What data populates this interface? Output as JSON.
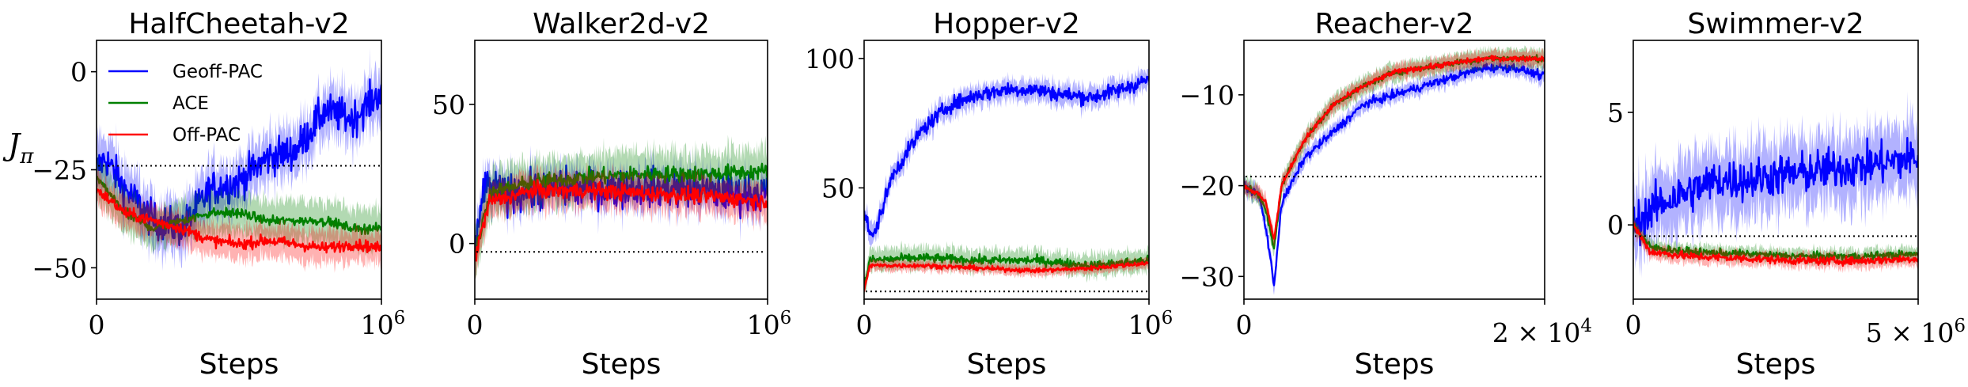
{
  "figure": {
    "ylabel": "J",
    "ylabel_sub": "π",
    "legend": [
      {
        "label": "Geoff-PAC",
        "color": "#0000ff"
      },
      {
        "label": "ACE",
        "color": "#008000"
      },
      {
        "label": "Off-PAC",
        "color": "#ff0000"
      }
    ]
  },
  "chart_data": [
    {
      "type": "line",
      "title": "HalfCheetah-v2",
      "xlabel": "Steps",
      "xlim": [
        0,
        1000000
      ],
      "ylim": [
        -58,
        8
      ],
      "yticks": [
        {
          "v": 0,
          "label": "0"
        },
        {
          "v": -25,
          "label": "−25"
        },
        {
          "v": -50,
          "label": "−50"
        }
      ],
      "xticks": [
        {
          "v": 0,
          "label": "0"
        },
        {
          "v": 1000000,
          "base": "10",
          "exp": "6"
        }
      ],
      "baseline": -24,
      "series": [
        {
          "name": "Geoff-PAC",
          "color": "#0000ff",
          "points": [
            [
              0,
              -25
            ],
            [
              30000,
              -22
            ],
            [
              100000,
              -30
            ],
            [
              200000,
              -38
            ],
            [
              300000,
              -40
            ],
            [
              400000,
              -30
            ],
            [
              500000,
              -28
            ],
            [
              600000,
              -22
            ],
            [
              700000,
              -20
            ],
            [
              800000,
              -10
            ],
            [
              900000,
              -12
            ],
            [
              1000000,
              -5
            ]
          ],
          "noise": 8,
          "band": 6
        },
        {
          "name": "ACE",
          "color": "#008000",
          "points": [
            [
              0,
              -27
            ],
            [
              100000,
              -36
            ],
            [
              200000,
              -40
            ],
            [
              300000,
              -38
            ],
            [
              400000,
              -36
            ],
            [
              500000,
              -36
            ],
            [
              600000,
              -38
            ],
            [
              700000,
              -38
            ],
            [
              800000,
              -38
            ],
            [
              900000,
              -40
            ],
            [
              1000000,
              -40
            ]
          ],
          "noise": 2,
          "band": 5
        },
        {
          "name": "Off-PAC",
          "color": "#ff0000",
          "points": [
            [
              0,
              -30
            ],
            [
              100000,
              -36
            ],
            [
              200000,
              -38
            ],
            [
              300000,
              -40
            ],
            [
              400000,
              -43
            ],
            [
              500000,
              -44
            ],
            [
              600000,
              -43
            ],
            [
              700000,
              -44
            ],
            [
              800000,
              -45
            ],
            [
              900000,
              -44
            ],
            [
              1000000,
              -45
            ]
          ],
          "noise": 2.5,
          "band": 4
        }
      ]
    },
    {
      "type": "line",
      "title": "Walker2d-v2",
      "xlabel": "Steps",
      "xlim": [
        0,
        1000000
      ],
      "ylim": [
        -20,
        73
      ],
      "yticks": [
        {
          "v": 50,
          "label": "50"
        },
        {
          "v": 0,
          "label": "0"
        }
      ],
      "xticks": [
        {
          "v": 0,
          "label": "0"
        },
        {
          "v": 1000000,
          "base": "10",
          "exp": "6"
        }
      ],
      "baseline": -3,
      "series": [
        {
          "name": "Geoff-PAC",
          "color": "#0000ff",
          "points": [
            [
              0,
              -5
            ],
            [
              30000,
              20
            ],
            [
              100000,
              18
            ],
            [
              300000,
              20
            ],
            [
              500000,
              20
            ],
            [
              700000,
              20
            ],
            [
              900000,
              18
            ],
            [
              1000000,
              18
            ]
          ],
          "noise": 12,
          "band": 6
        },
        {
          "name": "ACE",
          "color": "#008000",
          "points": [
            [
              0,
              -5
            ],
            [
              50000,
              18
            ],
            [
              200000,
              22
            ],
            [
              400000,
              24
            ],
            [
              600000,
              25
            ],
            [
              800000,
              25
            ],
            [
              1000000,
              26
            ]
          ],
          "noise": 5,
          "band": 8
        },
        {
          "name": "Off-PAC",
          "color": "#ff0000",
          "points": [
            [
              0,
              -5
            ],
            [
              50000,
              15
            ],
            [
              200000,
              19
            ],
            [
              400000,
              19
            ],
            [
              600000,
              18
            ],
            [
              800000,
              17
            ],
            [
              1000000,
              15
            ]
          ],
          "noise": 5,
          "band": 6
        }
      ]
    },
    {
      "type": "line",
      "title": "Hopper-v2",
      "xlabel": "Steps",
      "xlim": [
        0,
        1000000
      ],
      "ylim": [
        7,
        107
      ],
      "yticks": [
        {
          "v": 100,
          "label": "100"
        },
        {
          "v": 50,
          "label": "50"
        }
      ],
      "xticks": [
        {
          "v": 0,
          "label": "0"
        },
        {
          "v": 1000000,
          "base": "10",
          "exp": "6"
        }
      ],
      "baseline": 10,
      "series": [
        {
          "name": "Geoff-PAC",
          "color": "#0000ff",
          "points": [
            [
              0,
              40
            ],
            [
              30000,
              30
            ],
            [
              100000,
              55
            ],
            [
              200000,
              72
            ],
            [
              300000,
              82
            ],
            [
              400000,
              86
            ],
            [
              500000,
              88
            ],
            [
              600000,
              88
            ],
            [
              700000,
              86
            ],
            [
              800000,
              85
            ],
            [
              900000,
              88
            ],
            [
              1000000,
              92
            ]
          ],
          "noise": 5,
          "band": 4
        },
        {
          "name": "ACE",
          "color": "#008000",
          "points": [
            [
              0,
              12
            ],
            [
              20000,
              22
            ],
            [
              200000,
              23
            ],
            [
              400000,
              22
            ],
            [
              600000,
              22
            ],
            [
              800000,
              20
            ],
            [
              1000000,
              22
            ]
          ],
          "noise": 3,
          "band": 4
        },
        {
          "name": "Off-PAC",
          "color": "#ff0000",
          "points": [
            [
              0,
              10
            ],
            [
              20000,
              20
            ],
            [
              200000,
              20
            ],
            [
              400000,
              19
            ],
            [
              600000,
              18
            ],
            [
              800000,
              19
            ],
            [
              1000000,
              21
            ]
          ],
          "noise": 1.5,
          "band": 2
        }
      ]
    },
    {
      "type": "line",
      "title": "Reacher-v2",
      "xlabel": "Steps",
      "xlim": [
        0,
        20000
      ],
      "ylim": [
        -32.5,
        -4
      ],
      "yticks": [
        {
          "v": -10,
          "label": "−10"
        },
        {
          "v": -20,
          "label": "−20"
        },
        {
          "v": -30,
          "label": "−30"
        }
      ],
      "xticks": [
        {
          "v": 0,
          "label": "0"
        }
      ],
      "xoffset": "2 × 10",
      "xoffset_exp": "4",
      "baseline": -19,
      "series": [
        {
          "name": "Geoff-PAC",
          "color": "#0000ff",
          "points": [
            [
              0,
              -20
            ],
            [
              1000,
              -21
            ],
            [
              1500,
              -25
            ],
            [
              2000,
              -31
            ],
            [
              2500,
              -22
            ],
            [
              4000,
              -17
            ],
            [
              6000,
              -14
            ],
            [
              8000,
              -11
            ],
            [
              10000,
              -10
            ],
            [
              12000,
              -9
            ],
            [
              14000,
              -8
            ],
            [
              16000,
              -7
            ],
            [
              18000,
              -7
            ],
            [
              20000,
              -8
            ]
          ],
          "noise": 0.8,
          "band": 0.8
        },
        {
          "name": "ACE",
          "color": "#008000",
          "points": [
            [
              0,
              -20
            ],
            [
              1000,
              -21
            ],
            [
              1500,
              -23
            ],
            [
              2000,
              -27
            ],
            [
              2500,
              -20
            ],
            [
              4000,
              -15
            ],
            [
              6000,
              -11
            ],
            [
              8000,
              -9
            ],
            [
              10000,
              -7.5
            ],
            [
              12000,
              -7
            ],
            [
              14000,
              -6.5
            ],
            [
              16000,
              -6
            ],
            [
              18000,
              -6
            ],
            [
              20000,
              -6
            ]
          ],
          "noise": 0.6,
          "band": 1
        },
        {
          "name": "Off-PAC",
          "color": "#ff0000",
          "points": [
            [
              0,
              -20
            ],
            [
              1000,
              -21
            ],
            [
              1500,
              -22
            ],
            [
              2000,
              -26
            ],
            [
              2500,
              -20
            ],
            [
              4000,
              -15
            ],
            [
              6000,
              -11
            ],
            [
              8000,
              -9
            ],
            [
              10000,
              -7.5
            ],
            [
              12000,
              -7
            ],
            [
              14000,
              -6.5
            ],
            [
              16000,
              -6
            ],
            [
              18000,
              -6
            ],
            [
              20000,
              -6
            ]
          ],
          "noise": 0.5,
          "band": 0.8
        }
      ]
    },
    {
      "type": "line",
      "title": "Swimmer-v2",
      "xlabel": "Steps",
      "xlim": [
        0,
        5000000
      ],
      "ylim": [
        -3.3,
        8.2
      ],
      "yticks": [
        {
          "v": 5,
          "label": "5"
        },
        {
          "v": 0,
          "label": "0"
        }
      ],
      "xticks": [
        {
          "v": 0,
          "label": "0"
        }
      ],
      "xoffset": "5 × 10",
      "xoffset_exp": "6",
      "baseline": -0.5,
      "series": [
        {
          "name": "Geoff-PAC",
          "color": "#0000ff",
          "points": [
            [
              0,
              0
            ],
            [
              500000,
              1
            ],
            [
              1000000,
              1.5
            ],
            [
              1500000,
              2
            ],
            [
              2000000,
              2
            ],
            [
              2500000,
              2.2
            ],
            [
              3000000,
              2.3
            ],
            [
              3500000,
              2.5
            ],
            [
              4000000,
              2.6
            ],
            [
              4500000,
              2.8
            ],
            [
              5000000,
              3
            ]
          ],
          "noise": 1.6,
          "band": 1.5
        },
        {
          "name": "ACE",
          "color": "#008000",
          "points": [
            [
              0,
              0
            ],
            [
              300000,
              -1
            ],
            [
              1000000,
              -1.2
            ],
            [
              2000000,
              -1.3
            ],
            [
              3000000,
              -1.4
            ],
            [
              4000000,
              -1.4
            ],
            [
              5000000,
              -1.3
            ]
          ],
          "noise": 0.3,
          "band": 0.3
        },
        {
          "name": "Off-PAC",
          "color": "#ff0000",
          "points": [
            [
              0,
              0
            ],
            [
              300000,
              -1.2
            ],
            [
              1000000,
              -1.4
            ],
            [
              2000000,
              -1.5
            ],
            [
              3000000,
              -1.6
            ],
            [
              4000000,
              -1.6
            ],
            [
              5000000,
              -1.5
            ]
          ],
          "noise": 0.3,
          "band": 0.3
        }
      ]
    }
  ]
}
